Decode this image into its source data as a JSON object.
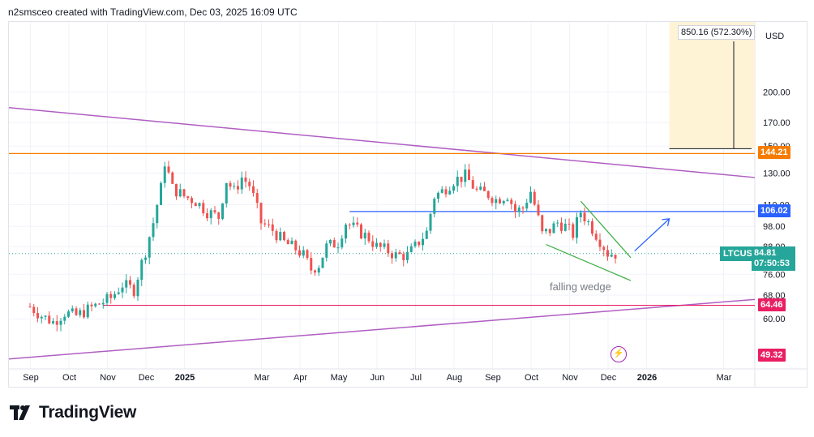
{
  "header": {
    "title": "n2smsceo created with TradingView.com, Dec 03, 2025 16:09 UTC"
  },
  "chart_data": {
    "type": "candlestick",
    "symbol": "LTCUSD",
    "currency": "USD",
    "y_scale": "log",
    "y_range": [
      46,
      290
    ],
    "y_ticks": [
      60,
      68,
      76,
      88,
      98,
      110,
      130,
      150,
      170,
      200
    ],
    "x_labels": [
      "Sep",
      "Oct",
      "Nov",
      "Dec",
      "2025",
      "Mar",
      "Apr",
      "May",
      "Jun",
      "Jul",
      "Aug",
      "Sep",
      "Oct",
      "Nov",
      "Dec",
      "2026",
      "Mar"
    ],
    "x_label_months": [
      0,
      1,
      2,
      3,
      4,
      6,
      7,
      8,
      9,
      10,
      11,
      12,
      13,
      14,
      15,
      16,
      18
    ],
    "close_series": [
      [
        0,
        64
      ],
      [
        0.3,
        61
      ],
      [
        0.6,
        59
      ],
      [
        0.9,
        62
      ],
      [
        1.2,
        61
      ],
      [
        1.5,
        63
      ],
      [
        1.8,
        65
      ],
      [
        2.1,
        67
      ],
      [
        2.4,
        72
      ],
      [
        2.7,
        70
      ],
      [
        3.0,
        86
      ],
      [
        3.2,
        100
      ],
      [
        3.4,
        120
      ],
      [
        3.5,
        138
      ],
      [
        3.7,
        120
      ],
      [
        4.0,
        115
      ],
      [
        4.3,
        112
      ],
      [
        4.6,
        106
      ],
      [
        4.9,
        103
      ],
      [
        5.1,
        125
      ],
      [
        5.3,
        118
      ],
      [
        5.5,
        127
      ],
      [
        5.7,
        122
      ],
      [
        6.0,
        100
      ],
      [
        6.3,
        96
      ],
      [
        6.6,
        90
      ],
      [
        6.9,
        87
      ],
      [
        7.1,
        84
      ],
      [
        7.3,
        78
      ],
      [
        7.5,
        80
      ],
      [
        7.7,
        88
      ],
      [
        8.0,
        90
      ],
      [
        8.2,
        100
      ],
      [
        8.5,
        96
      ],
      [
        8.8,
        92
      ],
      [
        9.0,
        88
      ],
      [
        9.3,
        86
      ],
      [
        9.5,
        84
      ],
      [
        9.8,
        84
      ],
      [
        10.0,
        88
      ],
      [
        10.3,
        95
      ],
      [
        10.5,
        115
      ],
      [
        10.7,
        118
      ],
      [
        11.0,
        125
      ],
      [
        11.3,
        128
      ],
      [
        11.6,
        118
      ],
      [
        11.9,
        116
      ],
      [
        12.1,
        113
      ],
      [
        12.4,
        116
      ],
      [
        12.6,
        106
      ],
      [
        12.8,
        108
      ],
      [
        13.0,
        118
      ],
      [
        13.1,
        110
      ],
      [
        13.3,
        94
      ],
      [
        13.5,
        96
      ],
      [
        13.7,
        100
      ],
      [
        13.9,
        98
      ],
      [
        14.1,
        94
      ],
      [
        14.3,
        106
      ],
      [
        14.5,
        100
      ],
      [
        14.7,
        94
      ],
      [
        14.9,
        88
      ],
      [
        15.0,
        85
      ],
      [
        15.2,
        84.81
      ]
    ],
    "horizontal_levels": [
      {
        "name": "resistance-orange",
        "value": 144.21,
        "color": "#f57c00",
        "label": "144.21"
      },
      {
        "name": "resistance-blue",
        "value": 106.02,
        "color": "#2962ff",
        "label": "106.02"
      },
      {
        "name": "support-red",
        "value": 64.46,
        "color": "#e91e63",
        "label": "64.46"
      }
    ],
    "extra_price_label": {
      "value": "49.32",
      "color": "#e91e63"
    },
    "current_price": {
      "symbol": "LTCUSD",
      "value": "84.81",
      "countdown": "07:50:53"
    },
    "measure_box": {
      "text": "850.16 (572.30%)",
      "color": "#fff3d6"
    },
    "pattern_label": "falling wedge",
    "colors": {
      "up": "#26a69a",
      "down": "#ef5350",
      "trend": "#b05ec2",
      "wedge": "#43b049",
      "arrow": "#2962ff"
    }
  },
  "footer": {
    "brand": "TradingView"
  }
}
